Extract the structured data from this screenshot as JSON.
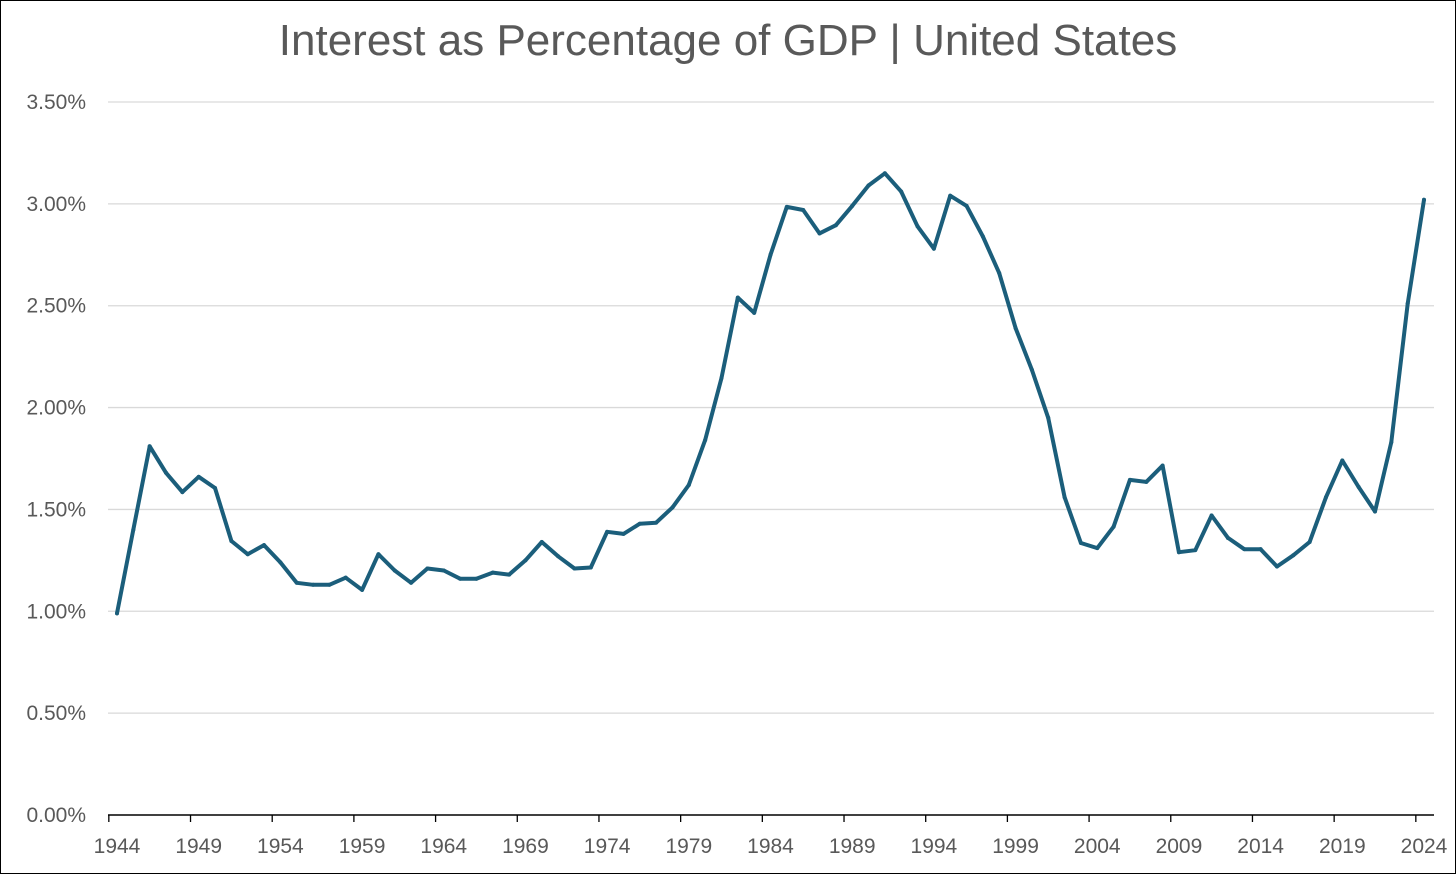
{
  "chart_data": {
    "type": "line",
    "title": "Interest as Percentage of GDP | United States",
    "xlabel": "",
    "ylabel": "",
    "ylim": [
      0,
      3.5
    ],
    "xlim": [
      1944,
      2024
    ],
    "grid": "horizontal",
    "y_ticks": [
      "0.00%",
      "0.50%",
      "1.00%",
      "1.50%",
      "2.00%",
      "2.50%",
      "3.00%",
      "3.50%"
    ],
    "x_ticks": [
      "1944",
      "1949",
      "1954",
      "1959",
      "1964",
      "1969",
      "1974",
      "1979",
      "1984",
      "1989",
      "1994",
      "1999",
      "2004",
      "2009",
      "2014",
      "2019",
      "2024"
    ],
    "color": "#1b5e7b",
    "x": [
      1944,
      1945,
      1946,
      1947,
      1948,
      1949,
      1950,
      1951,
      1952,
      1953,
      1954,
      1955,
      1956,
      1957,
      1958,
      1959,
      1960,
      1961,
      1962,
      1963,
      1964,
      1965,
      1966,
      1967,
      1968,
      1969,
      1970,
      1971,
      1972,
      1973,
      1974,
      1975,
      1976,
      1977,
      1978,
      1979,
      1980,
      1981,
      1982,
      1983,
      1984,
      1985,
      1986,
      1987,
      1988,
      1989,
      1990,
      1991,
      1992,
      1993,
      1994,
      1995,
      1996,
      1997,
      1998,
      1999,
      2000,
      2001,
      2002,
      2003,
      2004,
      2005,
      2006,
      2007,
      2008,
      2009,
      2010,
      2011,
      2012,
      2013,
      2014,
      2015,
      2016,
      2017,
      2018,
      2019,
      2020,
      2021,
      2022,
      2023,
      2024
    ],
    "values": [
      0.99,
      1.4,
      1.81,
      1.68,
      1.585,
      1.66,
      1.605,
      1.345,
      1.28,
      1.325,
      1.24,
      1.14,
      1.13,
      1.13,
      1.165,
      1.105,
      1.28,
      1.2,
      1.14,
      1.21,
      1.2,
      1.16,
      1.16,
      1.19,
      1.18,
      1.25,
      1.34,
      1.27,
      1.21,
      1.215,
      1.39,
      1.38,
      1.43,
      1.435,
      1.51,
      1.62,
      1.84,
      2.145,
      2.54,
      2.465,
      2.75,
      2.985,
      2.97,
      2.855,
      2.895,
      2.99,
      3.09,
      3.15,
      3.06,
      2.89,
      2.78,
      3.04,
      2.99,
      2.84,
      2.66,
      2.39,
      2.185,
      1.95,
      1.56,
      1.335,
      1.31,
      1.415,
      1.645,
      1.635,
      1.715,
      1.29,
      1.3,
      1.47,
      1.36,
      1.305,
      1.305,
      1.22,
      1.275,
      1.34,
      1.56,
      1.74,
      1.61,
      1.49,
      1.83,
      2.51,
      3.02
    ]
  }
}
